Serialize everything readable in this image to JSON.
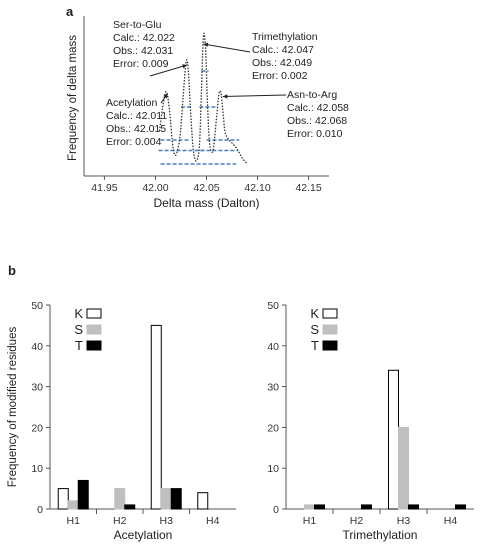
{
  "panels": {
    "a": "a",
    "b": "b"
  },
  "chart_data": [
    {
      "type": "line",
      "panel": "a",
      "xlabel": "Delta mass (Dalton)",
      "ylabel": "Frequency of delta mass",
      "xlim": [
        41.93,
        42.17
      ],
      "xticks": [
        41.95,
        42.0,
        42.05,
        42.1,
        42.15
      ],
      "xtick_labels": [
        "41.95",
        "42.00",
        "42.05",
        "42.10",
        "42.15"
      ],
      "ylim": [
        0,
        1
      ],
      "grid": false,
      "series": [
        {
          "line_style": "dotted",
          "x": [
            42.004,
            42.008,
            42.011,
            42.014,
            42.017,
            42.02,
            42.024,
            42.027,
            42.03,
            42.032,
            42.034,
            42.037,
            42.04,
            42.043,
            42.045,
            42.047,
            42.049,
            42.051,
            42.053,
            42.056,
            42.058,
            42.06,
            42.062,
            42.064,
            42.066,
            42.068,
            42.071,
            42.075,
            42.08,
            42.085,
            42.09
          ],
          "y": [
            0.3,
            0.5,
            0.56,
            0.42,
            0.2,
            0.14,
            0.26,
            0.52,
            0.76,
            0.72,
            0.48,
            0.18,
            0.1,
            0.2,
            0.55,
            0.93,
            0.86,
            0.48,
            0.22,
            0.16,
            0.26,
            0.4,
            0.54,
            0.56,
            0.44,
            0.3,
            0.25,
            0.22,
            0.18,
            0.12,
            0.08
          ]
        }
      ],
      "dashed_levels": [
        {
          "x": [
            42.005,
            42.079
          ],
          "y": 0.08,
          "color": "#4a7fc1"
        },
        {
          "x": [
            42.003,
            42.05
          ],
          "y": 0.17,
          "color": "#4a7fc1"
        },
        {
          "x": [
            42.044,
            42.081
          ],
          "y": 0.17,
          "color": "#4a7fc1"
        },
        {
          "x": [
            42.005,
            42.034
          ],
          "y": 0.24,
          "color": "#4a7fc1"
        },
        {
          "x": [
            42.05,
            42.082
          ],
          "y": 0.24,
          "color": "#4a7fc1"
        },
        {
          "x": [
            42.025,
            42.036
          ],
          "y": 0.46,
          "color": "#4a7fc1"
        },
        {
          "x": [
            42.043,
            42.061
          ],
          "y": 0.46,
          "color": "#4a7fc1"
        },
        {
          "x": [
            42.045,
            42.052
          ],
          "y": 0.7,
          "color": "#4a7fc1"
        }
      ],
      "annotations": [
        {
          "lines": [
            "Ser-to-Glu",
            "Calc.: 42.022",
            "Obs.: 42.031",
            "Error:  0.009"
          ],
          "target_x": 42.031,
          "target_y": 0.74
        },
        {
          "lines": [
            "Trimethylation",
            "Calc.: 42.047",
            "Obs.: 42.049",
            "Error:  0.002"
          ],
          "target_x": 42.047,
          "target_y": 0.88
        },
        {
          "lines": [
            "Acetylation",
            "Calc.: 42.011",
            "Obs.: 42.015",
            "Error:  0.004"
          ],
          "target_x": 42.012,
          "target_y": 0.55
        },
        {
          "lines": [
            "Asn-to-Arg",
            "Calc.: 42.058",
            "Obs.: 42.068",
            "Error:  0.010"
          ],
          "target_x": 42.066,
          "target_y": 0.53
        }
      ]
    },
    {
      "type": "bar",
      "panel": "b",
      "xlabel": "Acetylation",
      "ylabel": "Frequency of modified residues",
      "categories": [
        "H1",
        "H2",
        "H3",
        "H4"
      ],
      "ylim": [
        0,
        50
      ],
      "yticks": [
        0,
        10,
        20,
        30,
        40,
        50
      ],
      "grid": false,
      "legend_position": "top-left",
      "series": [
        {
          "name": "K",
          "color": "#ffffff",
          "values": [
            5,
            0,
            45,
            4
          ]
        },
        {
          "name": "S",
          "color": "#bfbfbf",
          "values": [
            2,
            5,
            5,
            0
          ]
        },
        {
          "name": "T",
          "color": "#000000",
          "values": [
            7,
            1,
            5,
            0
          ]
        }
      ]
    },
    {
      "type": "bar",
      "panel": "b",
      "xlabel": "Trimethylation",
      "ylabel": "",
      "categories": [
        "H1",
        "H2",
        "H3",
        "H4"
      ],
      "ylim": [
        0,
        50
      ],
      "yticks": [
        0,
        10,
        20,
        30,
        40,
        50
      ],
      "grid": false,
      "legend_position": "top-left",
      "series": [
        {
          "name": "K",
          "color": "#ffffff",
          "values": [
            0,
            0,
            34,
            0
          ]
        },
        {
          "name": "S",
          "color": "#bfbfbf",
          "values": [
            1,
            0,
            20,
            0
          ]
        },
        {
          "name": "T",
          "color": "#000000",
          "values": [
            1,
            1,
            1,
            1
          ]
        }
      ]
    }
  ]
}
